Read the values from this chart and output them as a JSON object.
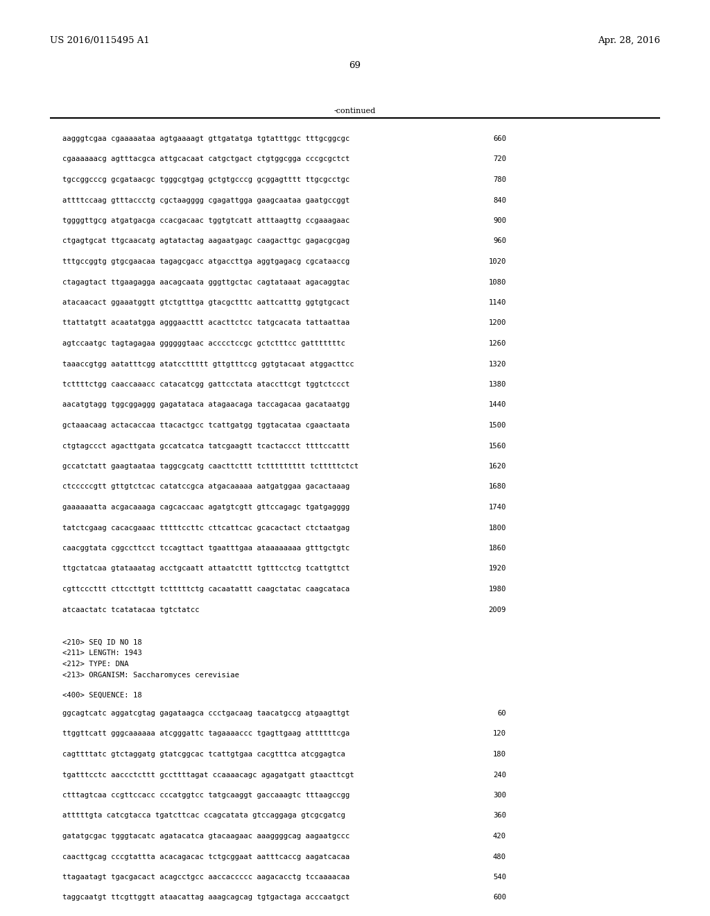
{
  "header_left": "US 2016/0115495 A1",
  "header_right": "Apr. 28, 2016",
  "page_number": "69",
  "continued_label": "-continued",
  "background_color": "#ffffff",
  "text_color": "#000000",
  "font_size": 7.6,
  "header_font_size": 9.5,
  "sequence_lines": [
    {
      "seq": "aagggtcgaa cgaaaaataa agtgaaaagt gttgatatga tgtatttggc tttgcggcgc",
      "num": "660"
    },
    {
      "seq": "cgaaaaaacg agtttacgca attgcacaat catgctgact ctgtggcgga cccgcgctct",
      "num": "720"
    },
    {
      "seq": "tgccggcccg gcgataacgc tgggcgtgag gctgtgcccg gcggagtttt ttgcgcctgc",
      "num": "780"
    },
    {
      "seq": "attttccaag gtttaccctg cgctaagggg cgagattgga gaagcaataa gaatgccggt",
      "num": "840"
    },
    {
      "seq": "tggggttgcg atgatgacga ccacgacaac tggtgtcatt atttaagttg ccgaaagaac",
      "num": "900"
    },
    {
      "seq": "ctgagtgcat ttgcaacatg agtatactag aagaatgagc caagacttgc gagacgcgag",
      "num": "960"
    },
    {
      "seq": "tttgccggtg gtgcgaacaa tagagcgacc atgaccttga aggtgagacg cgcataaccg",
      "num": "1020"
    },
    {
      "seq": "ctagagtact ttgaagagga aacagcaata gggttgctac cagtataaat agacaggtac",
      "num": "1080"
    },
    {
      "seq": "atacaacact ggaaatggtt gtctgtttga gtacgctttc aattcatttg ggtgtgcact",
      "num": "1140"
    },
    {
      "seq": "ttattatgtt acaatatgga agggaacttt acacttctcc tatgcacata tattaattaa",
      "num": "1200"
    },
    {
      "seq": "agtccaatgc tagtagagaa ggggggtaac acccctccgc gctctttcc gatttttttc",
      "num": "1260"
    },
    {
      "seq": "taaaccgtgg aatatttcgg atatccttttt gttgtttccg ggtgtacaat atggacttcc",
      "num": "1320"
    },
    {
      "seq": "tcttttctgg caaccaaacc catacatcgg gattcctata ataccttcgt tggtctccct",
      "num": "1380"
    },
    {
      "seq": "aacatgtagg tggcggaggg gagatataca atagaacaga taccagacaa gacataatgg",
      "num": "1440"
    },
    {
      "seq": "gctaaacaag actacaccaa ttacactgcc tcattgatgg tggtacataa cgaactaata",
      "num": "1500"
    },
    {
      "seq": "ctgtagccct agacttgata gccatcatca tatcgaagtt tcactaccct ttttccattt",
      "num": "1560"
    },
    {
      "seq": "gccatctatt gaagtaataa taggcgcatg caacttcttt tcttttttttt tctttttctct",
      "num": "1620"
    },
    {
      "seq": "ctcccccgtt gttgtctcac catatccgca atgacaaaaa aatgatggaa gacactaaag",
      "num": "1680"
    },
    {
      "seq": "gaaaaaatta acgacaaaga cagcaccaac agatgtcgtt gttccagagc tgatgagggg",
      "num": "1740"
    },
    {
      "seq": "tatctcgaag cacacgaaac tttttccttc cttcattcac gcacactact ctctaatgag",
      "num": "1800"
    },
    {
      "seq": "caacggtata cggccttcct tccagttact tgaatttgaa ataaaaaaaa gtttgctgtc",
      "num": "1860"
    },
    {
      "seq": "ttgctatcaa gtataaatag acctgcaatt attaatcttt tgtttcctcg tcattgttct",
      "num": "1920"
    },
    {
      "seq": "cgttcccttt cttccttgtt tctttttctg cacaatattt caagctatac caagcataca",
      "num": "1980"
    },
    {
      "seq": "atcaactatc tcatatacaa tgtctatcc",
      "num": "2009"
    }
  ],
  "metadata_lines": [
    "<210> SEQ ID NO 18",
    "<211> LENGTH: 1943",
    "<212> TYPE: DNA",
    "<213> ORGANISM: Saccharomyces cerevisiae"
  ],
  "sequence_label": "<400> SEQUENCE: 18",
  "sequence2_lines": [
    {
      "seq": "ggcagtcatc aggatcgtag gagataagca ccctgacaag taacatgccg atgaagttgt",
      "num": "60"
    },
    {
      "seq": "ttggttcatt gggcaaaaaa atcgggattc tagaaaaccc tgagttgaag attttttcga",
      "num": "120"
    },
    {
      "seq": "cagttttatc gtctaggatg gtatcggcac tcattgtgaa cacgtttca atcggagtca",
      "num": "180"
    },
    {
      "seq": "tgatttcctc aaccctcttt gccttttagat ccaaaacagc agagatgatt gtaacttcgt",
      "num": "240"
    },
    {
      "seq": "ctttagtcaa ccgttccacc cccatggtcc tatgcaaggt gaccaaagtc tttaagccgg",
      "num": "300"
    },
    {
      "seq": "atttttgta catcgtacca tgatcttcac ccagcatata gtccaggaga gtcgcgatcg",
      "num": "360"
    },
    {
      "seq": "gatatgcgac tgggtacatc agatacatca gtacaagaac aaaggggcag aagaatgccc",
      "num": "420"
    },
    {
      "seq": "caacttgcag cccgtattta acacagacac tctgcggaat aatttcaccg aagatcacaa",
      "num": "480"
    },
    {
      "seq": "ttagaatagt tgacgacact acagcctgcc aaccaccccc aagacacctg tccaaaacaa",
      "num": "540"
    },
    {
      "seq": "taggcaatgt ttcgttggtt ataacattag aaagcagcag tgtgactaga acccaatgct",
      "num": "600"
    }
  ]
}
